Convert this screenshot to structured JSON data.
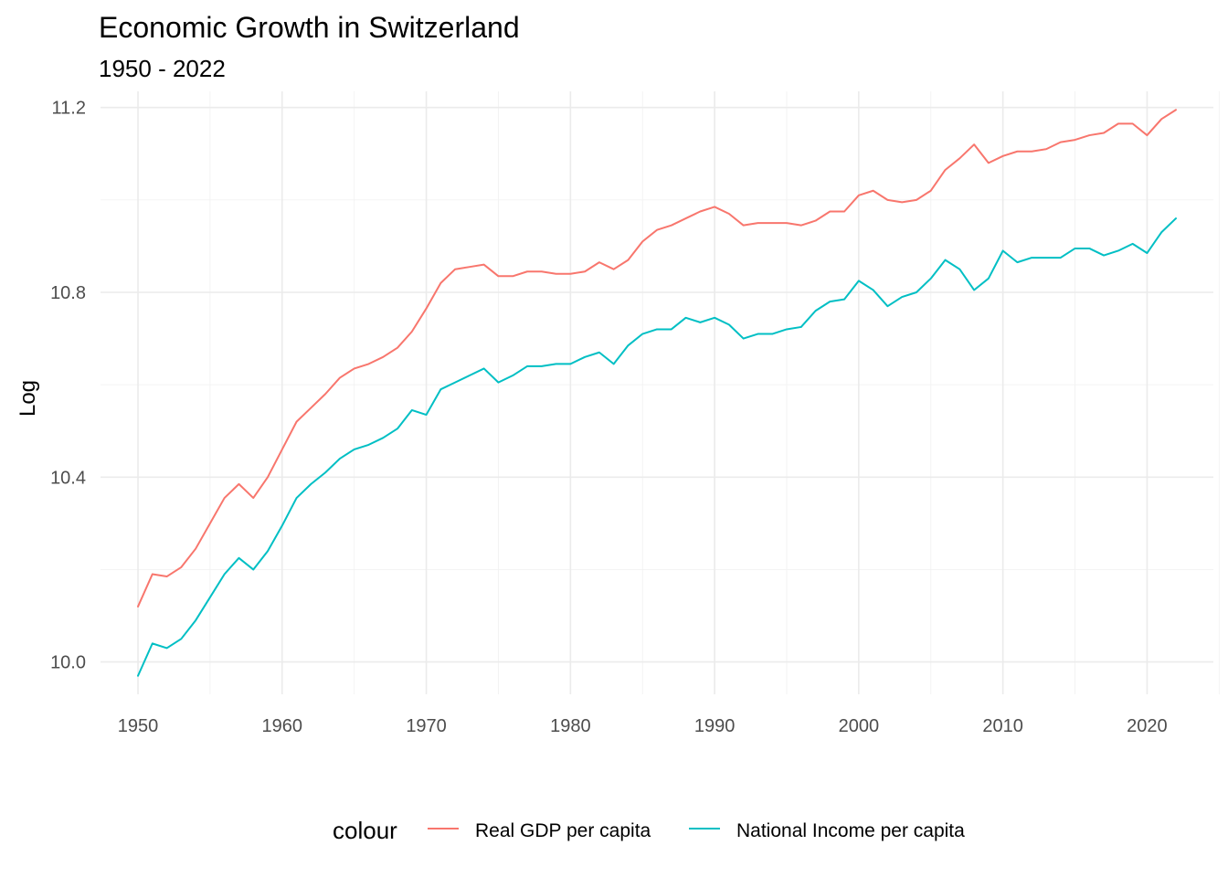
{
  "chart_data": {
    "type": "line",
    "title": "Economic Growth in Switzerland",
    "subtitle": "1950 - 2022",
    "xlabel": "",
    "ylabel": "Log",
    "xlim": [
      1947.4,
      2024.6
    ],
    "ylim": [
      9.93,
      11.235
    ],
    "x_ticks": [
      1950,
      1960,
      1970,
      1980,
      1990,
      2000,
      2010,
      2020
    ],
    "x_tick_labels": [
      "1950",
      "1960",
      "1970",
      "1980",
      "1990",
      "2000",
      "2010",
      "2020"
    ],
    "x_minor_ticks": [
      1955,
      1965,
      1975,
      1985,
      1995,
      2005,
      2015,
      2025
    ],
    "y_ticks": [
      10.0,
      10.4,
      10.8,
      11.2
    ],
    "y_tick_labels": [
      "10.0",
      "10.4",
      "10.8",
      "11.2"
    ],
    "y_minor_ticks": [
      10.2,
      10.6,
      11.0
    ],
    "grid": true,
    "legend_title": "colour",
    "legend_position": "bottom",
    "x": [
      1950,
      1951,
      1952,
      1953,
      1954,
      1955,
      1956,
      1957,
      1958,
      1959,
      1960,
      1961,
      1962,
      1963,
      1964,
      1965,
      1966,
      1967,
      1968,
      1969,
      1970,
      1971,
      1972,
      1973,
      1974,
      1975,
      1976,
      1977,
      1978,
      1979,
      1980,
      1981,
      1982,
      1983,
      1984,
      1985,
      1986,
      1987,
      1988,
      1989,
      1990,
      1991,
      1992,
      1993,
      1994,
      1995,
      1996,
      1997,
      1998,
      1999,
      2000,
      2001,
      2002,
      2003,
      2004,
      2005,
      2006,
      2007,
      2008,
      2009,
      2010,
      2011,
      2012,
      2013,
      2014,
      2015,
      2016,
      2017,
      2018,
      2019,
      2020,
      2021,
      2022
    ],
    "series": [
      {
        "name": "Real GDP per capita",
        "color": "#f8766d",
        "values": [
          10.12,
          10.19,
          10.185,
          10.205,
          10.245,
          10.3,
          10.355,
          10.385,
          10.355,
          10.4,
          10.46,
          10.52,
          10.55,
          10.58,
          10.615,
          10.635,
          10.645,
          10.66,
          10.68,
          10.715,
          10.765,
          10.82,
          10.85,
          10.855,
          10.86,
          10.835,
          10.835,
          10.845,
          10.845,
          10.84,
          10.84,
          10.845,
          10.865,
          10.85,
          10.87,
          10.91,
          10.935,
          10.945,
          10.96,
          10.975,
          10.985,
          10.97,
          10.945,
          10.95,
          10.95,
          10.95,
          10.945,
          10.955,
          10.975,
          10.975,
          11.01,
          11.02,
          11.0,
          10.995,
          11.0,
          11.02,
          11.065,
          11.09,
          11.12,
          11.08,
          11.095,
          11.105,
          11.105,
          11.11,
          11.125,
          11.13,
          11.14,
          11.145,
          11.165,
          11.165,
          11.14,
          11.175,
          11.195
        ]
      },
      {
        "name": "National Income per capita",
        "color": "#00bfc4",
        "values": [
          9.97,
          10.04,
          10.03,
          10.05,
          10.09,
          10.14,
          10.19,
          10.225,
          10.2,
          10.24,
          10.295,
          10.355,
          10.385,
          10.41,
          10.44,
          10.46,
          10.47,
          10.485,
          10.505,
          10.545,
          10.535,
          10.59,
          10.605,
          10.62,
          10.635,
          10.605,
          10.62,
          10.64,
          10.64,
          10.645,
          10.645,
          10.66,
          10.67,
          10.645,
          10.685,
          10.71,
          10.72,
          10.72,
          10.745,
          10.735,
          10.745,
          10.73,
          10.7,
          10.71,
          10.71,
          10.72,
          10.725,
          10.76,
          10.78,
          10.785,
          10.825,
          10.805,
          10.77,
          10.79,
          10.8,
          10.83,
          10.87,
          10.85,
          10.805,
          10.83,
          10.89,
          10.865,
          10.875,
          10.875,
          10.875,
          10.895,
          10.895,
          10.88,
          10.89,
          10.905,
          10.885,
          10.93,
          10.96
        ]
      }
    ]
  }
}
